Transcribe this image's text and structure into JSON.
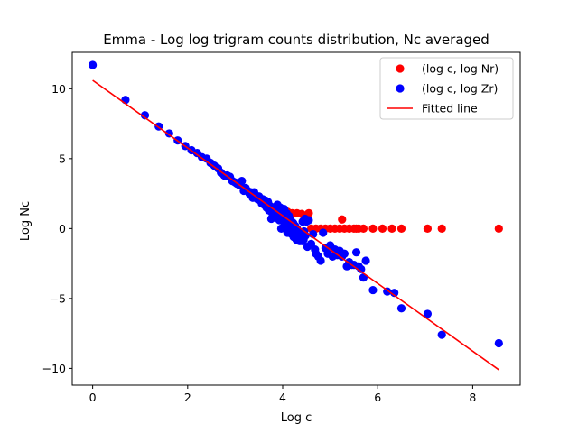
{
  "chart_data": {
    "type": "scatter",
    "title": "Emma - Log log trigram counts distribution, Nc averaged",
    "xlabel": "Log c",
    "ylabel": "Log Nc",
    "xlim": [
      -0.43,
      9.0
    ],
    "ylim": [
      -11.2,
      12.6
    ],
    "xticks": [
      0,
      2,
      4,
      6,
      8
    ],
    "yticks": [
      -10,
      -5,
      0,
      5,
      10
    ],
    "legend_position": "top-right",
    "grid": false,
    "series": [
      {
        "name": "(log c, log Nr)",
        "kind": "points",
        "color": "#ff0000",
        "points": [
          [
            3.9,
            1.4
          ],
          [
            4.0,
            1.3
          ],
          [
            4.05,
            1.25
          ],
          [
            4.1,
            1.2
          ],
          [
            4.2,
            1.1
          ],
          [
            4.3,
            1.1
          ],
          [
            4.4,
            1.05
          ],
          [
            4.5,
            0.75
          ],
          [
            4.55,
            1.1
          ],
          [
            4.6,
            0.0
          ],
          [
            4.7,
            0.0
          ],
          [
            4.8,
            0.0
          ],
          [
            4.9,
            0.0
          ],
          [
            5.0,
            0.0
          ],
          [
            5.1,
            0.0
          ],
          [
            5.2,
            0.0
          ],
          [
            5.25,
            0.65
          ],
          [
            5.3,
            0.0
          ],
          [
            5.4,
            0.0
          ],
          [
            5.5,
            0.0
          ],
          [
            5.55,
            0.0
          ],
          [
            5.6,
            0.0
          ],
          [
            5.7,
            0.0
          ],
          [
            5.9,
            0.0
          ],
          [
            6.1,
            0.0
          ],
          [
            6.3,
            0.0
          ],
          [
            6.5,
            0.0
          ],
          [
            7.05,
            0.0
          ],
          [
            7.35,
            0.0
          ],
          [
            8.55,
            0.0
          ]
        ]
      },
      {
        "name": "(log c, log Zr)",
        "kind": "points",
        "color": "#0000ff",
        "points": [
          [
            0.0,
            11.7
          ],
          [
            0.69,
            9.2
          ],
          [
            1.1,
            8.1
          ],
          [
            1.39,
            7.3
          ],
          [
            1.61,
            6.8
          ],
          [
            1.79,
            6.3
          ],
          [
            1.95,
            5.9
          ],
          [
            2.08,
            5.6
          ],
          [
            2.2,
            5.4
          ],
          [
            2.3,
            5.1
          ],
          [
            2.4,
            5.0
          ],
          [
            2.48,
            4.7
          ],
          [
            2.56,
            4.5
          ],
          [
            2.64,
            4.3
          ],
          [
            2.7,
            4.0
          ],
          [
            2.77,
            3.8
          ],
          [
            2.83,
            3.8
          ],
          [
            2.89,
            3.7
          ],
          [
            2.94,
            3.4
          ],
          [
            3.0,
            3.3
          ],
          [
            3.04,
            3.2
          ],
          [
            3.09,
            3.1
          ],
          [
            3.14,
            3.4
          ],
          [
            3.18,
            2.7
          ],
          [
            3.22,
            2.9
          ],
          [
            3.26,
            2.7
          ],
          [
            3.3,
            2.5
          ],
          [
            3.33,
            2.6
          ],
          [
            3.37,
            2.2
          ],
          [
            3.4,
            2.6
          ],
          [
            3.43,
            2.3
          ],
          [
            3.47,
            2.1
          ],
          [
            3.5,
            2.3
          ],
          [
            3.53,
            2.0
          ],
          [
            3.56,
            1.8
          ],
          [
            3.58,
            2.1
          ],
          [
            3.61,
            1.7
          ],
          [
            3.64,
            2.0
          ],
          [
            3.66,
            1.5
          ],
          [
            3.69,
            1.9
          ],
          [
            3.71,
            1.3
          ],
          [
            3.74,
            1.6
          ],
          [
            3.76,
            0.7
          ],
          [
            3.78,
            1.1
          ],
          [
            3.81,
            1.5
          ],
          [
            3.83,
            1.0
          ],
          [
            3.85,
            1.3
          ],
          [
            3.87,
            0.9
          ],
          [
            3.89,
            1.7
          ],
          [
            3.91,
            1.0
          ],
          [
            3.93,
            0.6
          ],
          [
            3.95,
            1.5
          ],
          [
            3.97,
            0.0
          ],
          [
            3.99,
            1.2
          ],
          [
            4.01,
            0.8
          ],
          [
            4.03,
            1.4
          ],
          [
            4.04,
            0.3
          ],
          [
            4.06,
            0.0
          ],
          [
            4.08,
            1.1
          ],
          [
            4.1,
            -0.3
          ],
          [
            4.11,
            0.5
          ],
          [
            4.13,
            0.9
          ],
          [
            4.14,
            -0.1
          ],
          [
            4.16,
            0.2
          ],
          [
            4.17,
            0.6
          ],
          [
            4.19,
            -0.4
          ],
          [
            4.2,
            0.0
          ],
          [
            4.22,
            0.4
          ],
          [
            4.23,
            -0.6
          ],
          [
            4.25,
            -0.2
          ],
          [
            4.26,
            0.2
          ],
          [
            4.28,
            -0.5
          ],
          [
            4.29,
            -0.8
          ],
          [
            4.3,
            0.0
          ],
          [
            4.32,
            -0.4
          ],
          [
            4.33,
            -0.7
          ],
          [
            4.34,
            -0.2
          ],
          [
            4.36,
            -0.9
          ],
          [
            4.37,
            -0.5
          ],
          [
            4.38,
            -0.3
          ],
          [
            4.39,
            -0.7
          ],
          [
            4.41,
            -0.9
          ],
          [
            4.42,
            0.5
          ],
          [
            4.43,
            -0.4
          ],
          [
            4.44,
            -0.8
          ],
          [
            4.45,
            -0.2
          ],
          [
            4.47,
            0.7
          ],
          [
            4.48,
            -0.5
          ],
          [
            4.5,
            0.5
          ],
          [
            4.52,
            -1.3
          ],
          [
            4.55,
            0.6
          ],
          [
            4.6,
            -1.1
          ],
          [
            4.64,
            -0.4
          ],
          [
            4.68,
            -1.5
          ],
          [
            4.7,
            -1.8
          ],
          [
            4.75,
            -2.0
          ],
          [
            4.8,
            -2.3
          ],
          [
            4.85,
            -0.3
          ],
          [
            4.9,
            -1.4
          ],
          [
            4.95,
            -1.8
          ],
          [
            5.0,
            -1.2
          ],
          [
            5.05,
            -2.0
          ],
          [
            5.1,
            -1.5
          ],
          [
            5.15,
            -1.9
          ],
          [
            5.2,
            -1.6
          ],
          [
            5.25,
            -2.0
          ],
          [
            5.3,
            -1.8
          ],
          [
            5.35,
            -2.7
          ],
          [
            5.4,
            -2.4
          ],
          [
            5.45,
            -2.6
          ],
          [
            5.5,
            -2.6
          ],
          [
            5.55,
            -1.7
          ],
          [
            5.6,
            -2.7
          ],
          [
            5.65,
            -2.9
          ],
          [
            5.7,
            -3.5
          ],
          [
            5.75,
            -2.3
          ],
          [
            5.9,
            -4.4
          ],
          [
            6.2,
            -4.5
          ],
          [
            6.35,
            -4.6
          ],
          [
            6.5,
            -5.7
          ],
          [
            7.05,
            -6.1
          ],
          [
            7.35,
            -7.6
          ],
          [
            8.55,
            -8.2
          ]
        ]
      },
      {
        "name": "Fitted line",
        "kind": "line",
        "color": "#ff0000",
        "points": [
          [
            0.0,
            10.6
          ],
          [
            8.55,
            -10.1
          ]
        ]
      }
    ]
  }
}
